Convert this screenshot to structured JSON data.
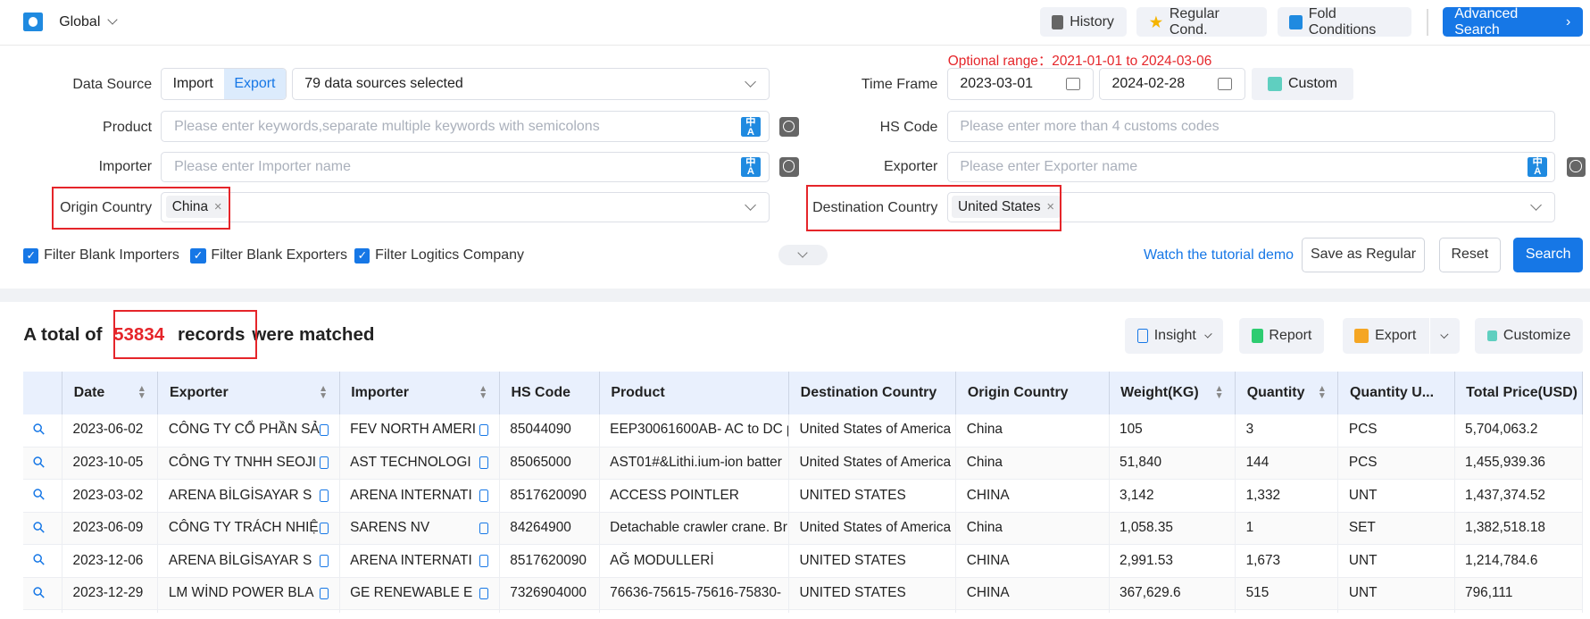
{
  "header": {
    "scope": "Global",
    "history": "History",
    "regular": "Regular Cond.",
    "fold": "Fold Conditions",
    "advanced": "Advanced Search"
  },
  "form": {
    "optional_range_label": "Optional range：",
    "optional_range": "2021-01-01 to 2024-03-06",
    "data_source_label": "Data Source",
    "import": "Import",
    "export": "Export",
    "data_sources": "79 data sources selected",
    "time_frame_label": "Time Frame",
    "date_from": "2023-03-01",
    "date_to": "2024-02-28",
    "custom": "Custom",
    "product_label": "Product",
    "product_placeholder": "Please enter keywords,separate multiple keywords with semicolons",
    "hs_label": "HS Code",
    "hs_placeholder": "Please enter more than 4 customs codes",
    "importer_label": "Importer",
    "importer_placeholder": "Please enter Importer name",
    "exporter_label": "Exporter",
    "exporter_placeholder": "Please enter Exporter name",
    "origin_label": "Origin Country",
    "origin_tag": "China",
    "dest_label": "Destination Country",
    "dest_tag": "United States",
    "filters": [
      "Filter Blank Importers",
      "Filter Blank Exporters",
      "Filter Logitics Company"
    ],
    "tutorial": "Watch the tutorial demo",
    "save_regular": "Save as Regular",
    "reset": "Reset",
    "search": "Search"
  },
  "results": {
    "prefix": "A total of",
    "count": "53834",
    "records": "records",
    "suffix": "were matched",
    "insight": "Insight",
    "report": "Report",
    "export": "Export",
    "customize": "Customize"
  },
  "table": {
    "columns": [
      "",
      "Date",
      "Exporter",
      "Importer",
      "HS Code",
      "Product",
      "Destination Country",
      "Origin Country",
      "Weight(KG)",
      "Quantity",
      "Quantity U...",
      "Total Price(USD)"
    ],
    "rows": [
      [
        "2023-06-02",
        "CÔNG TY CỔ PHẦN SẢ",
        "FEV NORTH AMERI",
        "85044090",
        "EEP30061600AB- AC to DC p",
        "United States of America",
        "China",
        "105",
        "3",
        "PCS",
        "5,704,063.2"
      ],
      [
        "2023-10-05",
        "CÔNG TY TNHH SEOJI",
        "AST TECHNOLOGI",
        "85065000",
        "AST01#&Lithi.ium-ion batter",
        "United States of America",
        "China",
        "51,840",
        "144",
        "PCS",
        "1,455,939.36"
      ],
      [
        "2023-03-02",
        "ARENA BİLGİSAYAR S",
        "ARENA INTERNATI",
        "8517620090",
        "ACCESS POINTLER",
        "UNITED STATES",
        "CHINA",
        "3,142",
        "1,332",
        "UNT",
        "1,437,374.52"
      ],
      [
        "2023-06-09",
        "CÔNG TY TRÁCH NHIỆ",
        "SARENS NV",
        "84264900",
        "Detachable crawler crane. Br",
        "United States of America",
        "China",
        "1,058.35",
        "1",
        "SET",
        "1,382,518.18"
      ],
      [
        "2023-12-06",
        "ARENA BİLGİSAYAR S",
        "ARENA INTERNATI",
        "8517620090",
        "AĞ MODULLERİ",
        "UNITED STATES",
        "CHINA",
        "2,991.53",
        "1,673",
        "UNT",
        "1,214,784.6"
      ],
      [
        "2023-12-29",
        "LM WİND POWER BLA",
        "GE RENEWABLE E",
        "7326904000",
        "76636-75615-75616-75830-",
        "UNITED STATES",
        "CHINA",
        "367,629.6",
        "515",
        "UNT",
        "796,111"
      ],
      [
        "",
        "",
        "",
        "",
        "",
        "",
        "",
        "",
        "",
        "",
        ""
      ]
    ]
  },
  "colors": {
    "accent": "#1677e6",
    "highlight": "#e5252a",
    "header_bg": "#e9f0fd"
  }
}
